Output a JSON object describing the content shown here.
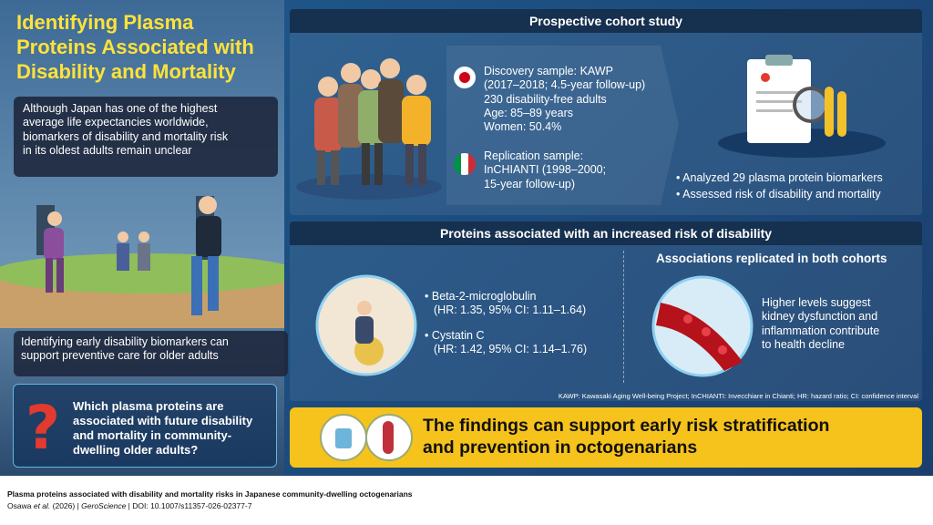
{
  "left": {
    "title": [
      "Identifying Plasma",
      "Proteins Associated with",
      "Disability and Mortality"
    ],
    "intro": [
      "Although Japan has one of the highest",
      "average life expectancies worldwide,",
      "biomarkers of disability and mortality risk",
      "in its oldest adults remain unclear"
    ],
    "note": [
      "Identifying early disability biomarkers can",
      "support preventive care for older adults"
    ],
    "question": [
      "Which plasma proteins are",
      "associated with future disability",
      "and mortality in community-",
      "dwelling older adults?"
    ]
  },
  "cohort": {
    "heading": "Prospective cohort study",
    "discovery": [
      "Discovery sample: KAWP",
      "(2017–2018; 4.5-year follow-up)",
      "230 disability-free adults",
      "Age: 85–89 years",
      "Women: 50.4%"
    ],
    "replication": [
      "Replication sample:",
      "InCHIANTI (1998–2000;",
      "15-year follow-up)"
    ],
    "bullets": [
      "Analyzed 29 plasma protein biomarkers",
      "Assessed risk of disability and mortality"
    ]
  },
  "disability": {
    "heading": "Proteins associated with an increased risk of disability",
    "proteins": [
      {
        "name": "Beta-2-microglobulin",
        "hr": "(HR: 1.35, 95% CI: 1.11–1.64)"
      },
      {
        "name": "Cystatin C",
        "hr": "(HR: 1.42, 95% CI: 1.14–1.76)"
      }
    ],
    "replicated_heading": "Associations replicated in both cohorts",
    "replicated_text": [
      "Higher levels suggest",
      "kidney dysfunction and",
      "inflammation contribute",
      "to health decline"
    ],
    "footnote": "KAWP: Kawasaki Aging Well-being Project; InCHIANTI: Invecchiare in Chianti; HR: hazard ratio; CI: confidence interval"
  },
  "conclusion": [
    "The findings can support early risk stratification",
    "and prevention in octogenarians"
  ],
  "caption": {
    "title": "Plasma proteins associated with disability and mortality risks in Japanese community-dwelling octogenarians",
    "authors": "Osawa",
    "etal": "et al.",
    "year": " (2026) | ",
    "journal": "GeroScience",
    "doi": " | DOI: 10.1007/s11357-026-02377-7"
  }
}
